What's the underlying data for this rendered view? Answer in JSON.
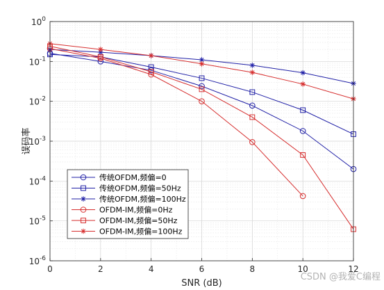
{
  "chart_data": {
    "type": "line",
    "xlabel": "SNR (dB)",
    "ylabel": "误码率",
    "xlim": [
      0,
      12
    ],
    "ylim": [
      1e-06,
      1
    ],
    "yscale": "log",
    "grid": true,
    "minor_grid": true,
    "x_ticks": [
      0,
      2,
      4,
      6,
      8,
      10,
      12
    ],
    "y_ticks": [
      {
        "value": 1,
        "base": "10",
        "exp": "0"
      },
      {
        "value": 0.1,
        "base": "10",
        "exp": "-1"
      },
      {
        "value": 0.01,
        "base": "10",
        "exp": "-2"
      },
      {
        "value": 0.001,
        "base": "10",
        "exp": "-3"
      },
      {
        "value": 0.0001,
        "base": "10",
        "exp": "-4"
      },
      {
        "value": 1e-05,
        "base": "10",
        "exp": "-5"
      },
      {
        "value": 1e-06,
        "base": "10",
        "exp": "-6"
      }
    ],
    "legend_position": "bottom-left",
    "series": [
      {
        "name": "传统OFDM,频偏=0",
        "color": "#1f1fa6",
        "marker": "circle",
        "points": [
          [
            0,
            0.16
          ],
          [
            2,
            0.1
          ],
          [
            4,
            0.06
          ],
          [
            6,
            0.024
          ],
          [
            8,
            0.0078
          ],
          [
            10,
            0.0018
          ],
          [
            12,
            0.0002
          ]
        ]
      },
      {
        "name": "传统OFDM,频偏=50Hz",
        "color": "#1f1fa6",
        "marker": "square",
        "points": [
          [
            0,
            0.15
          ],
          [
            2,
            0.13
          ],
          [
            4,
            0.072
          ],
          [
            6,
            0.038
          ],
          [
            8,
            0.017
          ],
          [
            10,
            0.006
          ],
          [
            12,
            0.0015
          ]
        ]
      },
      {
        "name": "传统OFDM,频偏=100Hz",
        "color": "#1f1fa6",
        "marker": "asterisk",
        "points": [
          [
            0,
            0.2
          ],
          [
            2,
            0.17
          ],
          [
            4,
            0.14
          ],
          [
            6,
            0.11
          ],
          [
            8,
            0.08
          ],
          [
            10,
            0.052
          ],
          [
            12,
            0.028
          ]
        ]
      },
      {
        "name": "OFDM-IM,频偏=0Hz",
        "color": "#d62d2d",
        "marker": "circle",
        "points": [
          [
            0,
            0.21
          ],
          [
            2,
            0.12
          ],
          [
            4,
            0.047
          ],
          [
            6,
            0.01
          ],
          [
            8,
            0.00095
          ],
          [
            10,
            4.2e-05
          ]
        ]
      },
      {
        "name": "OFDM-IM,频偏=50Hz",
        "color": "#d62d2d",
        "marker": "square",
        "points": [
          [
            0,
            0.24
          ],
          [
            2,
            0.13
          ],
          [
            4,
            0.055
          ],
          [
            6,
            0.02
          ],
          [
            8,
            0.004
          ],
          [
            10,
            0.00045
          ],
          [
            12,
            6.2e-06
          ]
        ]
      },
      {
        "name": "OFDM-IM,频偏=100Hz",
        "color": "#d62d2d",
        "marker": "asterisk",
        "points": [
          [
            0,
            0.28
          ],
          [
            2,
            0.2
          ],
          [
            4,
            0.14
          ],
          [
            6,
            0.087
          ],
          [
            8,
            0.053
          ],
          [
            10,
            0.027
          ],
          [
            12,
            0.0115
          ]
        ]
      }
    ]
  },
  "watermark": {
    "text": "CSDN @我爱C编程"
  }
}
